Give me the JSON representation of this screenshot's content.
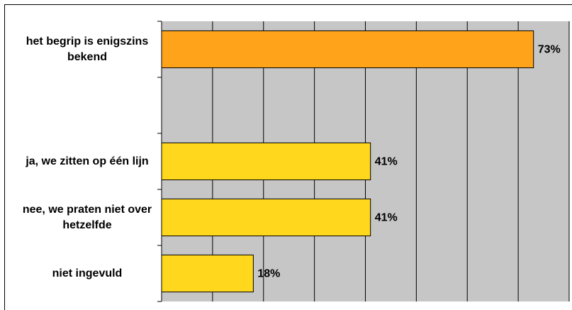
{
  "chart_data": {
    "type": "bar",
    "orientation": "horizontal",
    "categories": [
      "het begrip is enigszins bekend",
      null,
      "ja, we zitten op één lijn",
      "nee, we praten niet over hetzelfde",
      "niet ingevuld"
    ],
    "values": [
      73,
      null,
      41,
      41,
      18
    ],
    "value_labels": [
      "73%",
      null,
      "41%",
      "41%",
      "18%"
    ],
    "colors": [
      "#ffa31a",
      null,
      "#ffd71c",
      "#ffd71c",
      "#ffd71c"
    ],
    "xlim": [
      0,
      80
    ],
    "xticks": [
      0,
      10,
      20,
      30,
      40,
      50,
      60,
      70,
      80
    ],
    "grid": true,
    "plot_background": "#c6c6c6"
  }
}
